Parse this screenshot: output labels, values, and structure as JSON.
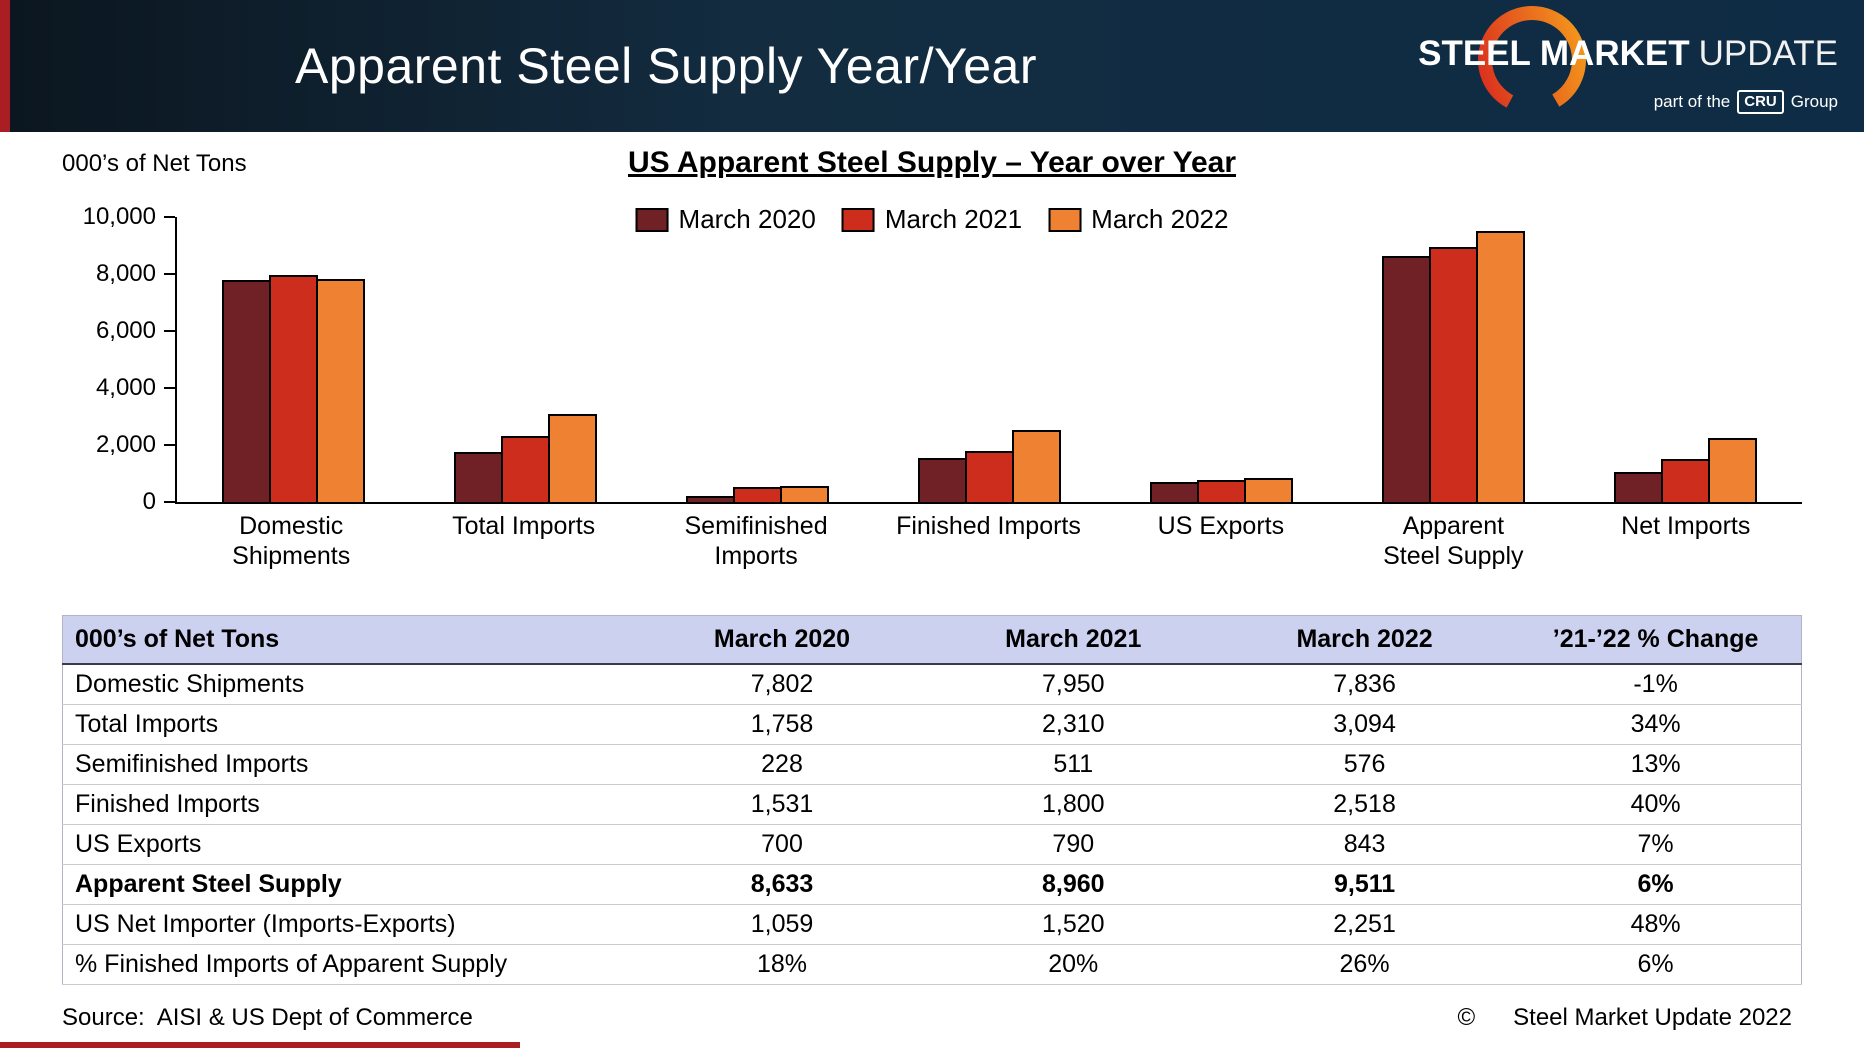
{
  "header": {
    "title": "Apparent Steel Supply Year/Year",
    "logo": {
      "steel": "STEEL",
      "market": "MARKET",
      "update": "UPDATE",
      "tagline_prefix": "part of the",
      "tagline_cru": "CRU",
      "tagline_suffix": "Group"
    }
  },
  "chart_data": {
    "type": "bar",
    "title": "US Apparent Steel Supply – Year over Year",
    "unit_label": "000’s of Net Tons",
    "xlabel": "",
    "ylabel": "000’s of Net Tons",
    "ylim": [
      0,
      10000
    ],
    "grid": false,
    "legend_position": "top",
    "categories": [
      "Domestic Shipments",
      "Total Imports",
      "Semifinished Imports",
      "Finished Imports",
      "US Exports",
      "Apparent Steel Supply",
      "Net Imports"
    ],
    "category_labels": [
      "Domestic\nShipments",
      "Total Imports",
      "Semifinished\nImports",
      "Finished Imports",
      "US Exports",
      "Apparent\nSteel Supply",
      "Net Imports"
    ],
    "series": [
      {
        "name": "March 2020",
        "color": "#6f2125",
        "values": [
          7802,
          1758,
          228,
          1531,
          700,
          8633,
          1059
        ]
      },
      {
        "name": "March 2021",
        "color": "#cc2d1c",
        "values": [
          7950,
          2310,
          511,
          1800,
          790,
          8960,
          1520
        ]
      },
      {
        "name": "March 2022",
        "color": "#ef8133",
        "values": [
          7836,
          3094,
          576,
          2518,
          843,
          9511,
          2251
        ]
      }
    ],
    "yticks": [
      {
        "v": 0,
        "label": "0"
      },
      {
        "v": 2000,
        "label": "2,000"
      },
      {
        "v": 4000,
        "label": "4,000"
      },
      {
        "v": 6000,
        "label": "6,000"
      },
      {
        "v": 8000,
        "label": "8,000"
      },
      {
        "v": 10000,
        "label": "10,000"
      }
    ]
  },
  "table": {
    "columns": [
      "000’s of Net Tons",
      "March 2020",
      "March 2021",
      "March 2022",
      "’21-’22 % Change"
    ],
    "rows": [
      {
        "label": "Domestic Shipments",
        "values": [
          "7,802",
          "7,950",
          "7,836",
          "-1%"
        ],
        "bold": false
      },
      {
        "label": "Total Imports",
        "values": [
          "1,758",
          "2,310",
          "3,094",
          "34%"
        ],
        "bold": false
      },
      {
        "label": "Semifinished Imports",
        "values": [
          "228",
          "511",
          "576",
          "13%"
        ],
        "bold": false
      },
      {
        "label": "Finished Imports",
        "values": [
          "1,531",
          "1,800",
          "2,518",
          "40%"
        ],
        "bold": false
      },
      {
        "label": "US Exports",
        "values": [
          "700",
          "790",
          "843",
          "7%"
        ],
        "bold": false
      },
      {
        "label": "Apparent Steel Supply",
        "values": [
          "8,633",
          "8,960",
          "9,511",
          "6%"
        ],
        "bold": true
      },
      {
        "label": "US Net Importer (Imports-Exports)",
        "values": [
          "1,059",
          "1,520",
          "2,251",
          "48%"
        ],
        "bold": false
      },
      {
        "label": "% Finished Imports of Apparent Supply",
        "values": [
          "18%",
          "20%",
          "26%",
          "6%"
        ],
        "bold": false
      }
    ]
  },
  "footer": {
    "source": "Source:  AISI & US Dept of Commerce",
    "copyright_symbol": "©",
    "copyright_text": "Steel Market Update 2022"
  },
  "colors": {
    "accent_red": "#a81e22",
    "table_header_bg": "#cdd1f0",
    "header_gradient_start": "#0b161f",
    "header_gradient_end": "#0e2c45"
  }
}
